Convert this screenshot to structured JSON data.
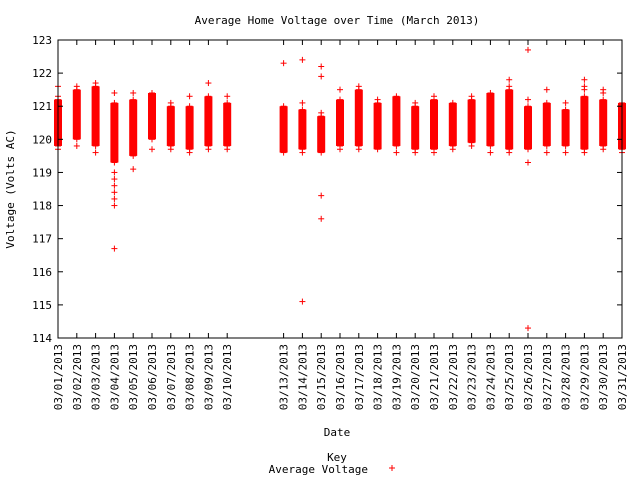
{
  "chart_data": {
    "type": "scatter",
    "title": "Average Home Voltage over Time (March 2013)",
    "xlabel": "Date",
    "ylabel": "Voltage (Volts AC)",
    "ylim": [
      114,
      123
    ],
    "yticks": [
      114,
      115,
      116,
      117,
      118,
      119,
      120,
      121,
      122,
      123
    ],
    "grid": false,
    "legend": {
      "title": "Key",
      "entries": [
        "Average Voltage"
      ],
      "placement": "bottom-center"
    },
    "marker": "+",
    "color": "#ff0000",
    "series": [
      {
        "name": "Average Voltage",
        "days": [
          {
            "date": "03/01/2013",
            "range": [
              119.8,
              121.2
            ],
            "outliers": [
              119.7,
              121.3,
              121.6
            ]
          },
          {
            "date": "03/02/2013",
            "range": [
              120.0,
              121.5
            ],
            "outliers": [
              119.8,
              121.6
            ]
          },
          {
            "date": "03/03/2013",
            "range": [
              119.8,
              121.6
            ],
            "outliers": [
              119.6,
              121.7
            ]
          },
          {
            "date": "03/04/2013",
            "range": [
              119.3,
              121.1
            ],
            "outliers": [
              121.4,
              119.0,
              118.8,
              118.6,
              118.4,
              118.2,
              118.0,
              116.7
            ]
          },
          {
            "date": "03/05/2013",
            "range": [
              119.5,
              121.2
            ],
            "outliers": [
              121.4,
              119.1
            ]
          },
          {
            "date": "03/06/2013",
            "range": [
              120.0,
              121.4
            ],
            "outliers": [
              119.7
            ]
          },
          {
            "date": "03/07/2013",
            "range": [
              119.8,
              121.0
            ],
            "outliers": [
              121.1,
              119.7
            ]
          },
          {
            "date": "03/08/2013",
            "range": [
              119.7,
              121.0
            ],
            "outliers": [
              121.3,
              119.6
            ]
          },
          {
            "date": "03/09/2013",
            "range": [
              119.8,
              121.3
            ],
            "outliers": [
              121.7,
              119.7
            ]
          },
          {
            "date": "03/10/2013",
            "range": [
              119.8,
              121.1
            ],
            "outliers": [
              121.3,
              119.7
            ]
          },
          {
            "date": "03/13/2013",
            "range": [
              119.6,
              121.0
            ],
            "outliers": [
              122.3
            ]
          },
          {
            "date": "03/14/2013",
            "range": [
              119.7,
              120.9
            ],
            "outliers": [
              122.4,
              121.1,
              119.6,
              115.1
            ]
          },
          {
            "date": "03/15/2013",
            "range": [
              119.6,
              120.7
            ],
            "outliers": [
              122.2,
              121.9,
              120.8,
              118.3,
              117.6
            ]
          },
          {
            "date": "03/16/2013",
            "range": [
              119.8,
              121.2
            ],
            "outliers": [
              121.5,
              119.7
            ]
          },
          {
            "date": "03/17/2013",
            "range": [
              119.8,
              121.5
            ],
            "outliers": [
              121.6,
              119.7
            ]
          },
          {
            "date": "03/18/2013",
            "range": [
              119.7,
              121.1
            ],
            "outliers": [
              121.2
            ]
          },
          {
            "date": "03/19/2013",
            "range": [
              119.8,
              121.3
            ],
            "outliers": [
              119.6
            ]
          },
          {
            "date": "03/20/2013",
            "range": [
              119.7,
              121.0
            ],
            "outliers": [
              121.1,
              119.6
            ]
          },
          {
            "date": "03/21/2013",
            "range": [
              119.7,
              121.2
            ],
            "outliers": [
              121.3,
              119.6
            ]
          },
          {
            "date": "03/22/2013",
            "range": [
              119.8,
              121.1
            ],
            "outliers": [
              119.7
            ]
          },
          {
            "date": "03/23/2013",
            "range": [
              119.9,
              121.2
            ],
            "outliers": [
              121.3,
              119.8
            ]
          },
          {
            "date": "03/24/2013",
            "range": [
              119.8,
              121.4
            ],
            "outliers": [
              119.6
            ]
          },
          {
            "date": "03/25/2013",
            "range": [
              119.7,
              121.5
            ],
            "outliers": [
              121.8,
              121.6,
              119.6
            ]
          },
          {
            "date": "03/26/2013",
            "range": [
              119.7,
              121.0
            ],
            "outliers": [
              122.7,
              121.2,
              119.3,
              114.3
            ]
          },
          {
            "date": "03/27/2013",
            "range": [
              119.8,
              121.1
            ],
            "outliers": [
              121.5,
              119.6
            ]
          },
          {
            "date": "03/28/2013",
            "range": [
              119.8,
              120.9
            ],
            "outliers": [
              121.1,
              119.6
            ]
          },
          {
            "date": "03/29/2013",
            "range": [
              119.7,
              121.3
            ],
            "outliers": [
              121.8,
              121.6,
              121.5,
              119.6
            ]
          },
          {
            "date": "03/30/2013",
            "range": [
              119.8,
              121.2
            ],
            "outliers": [
              121.5,
              121.4,
              119.7
            ]
          },
          {
            "date": "03/31/2013",
            "range": [
              119.7,
              121.1
            ],
            "outliers": [
              120.0,
              119.6
            ]
          }
        ]
      }
    ]
  }
}
